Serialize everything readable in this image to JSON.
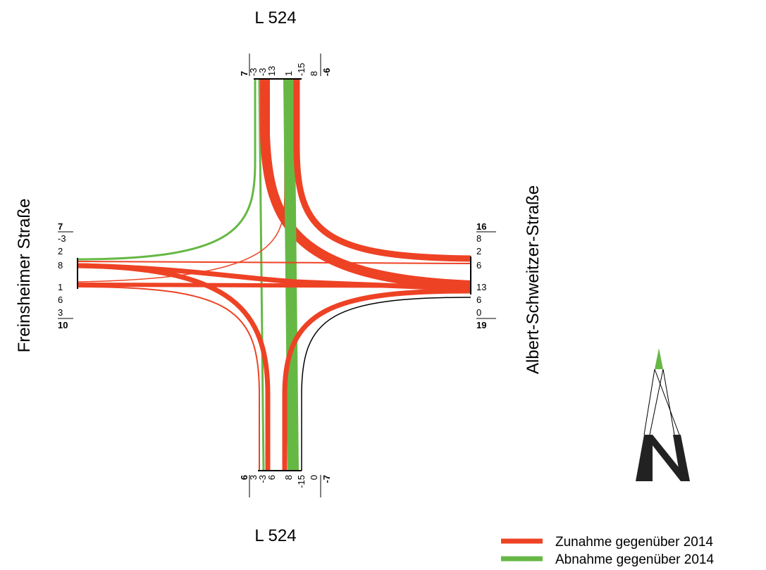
{
  "colors": {
    "increase": "#ee4225",
    "decrease": "#66b845",
    "neutral": "#000000"
  },
  "labels": {
    "north_road": "L 524",
    "south_road": "L 524",
    "west_road": "Freinsheimer Straße",
    "east_road": "Albert-Schweitzer-Straße"
  },
  "legend": {
    "increase": "Zunahme gegenüber 2014",
    "decrease": "Abnahme gegenüber 2014"
  },
  "counts": {
    "north": {
      "total_in": "7",
      "in": [
        "-3",
        "-3",
        "13"
      ],
      "out": [
        "1",
        "-15",
        "8"
      ],
      "total_out": "-6"
    },
    "south": {
      "total_out": "6",
      "out": [
        "3",
        "-3",
        "6"
      ],
      "in": [
        "8",
        "-15",
        "0"
      ],
      "total_in": "-7"
    },
    "west": {
      "total_out": "7",
      "out": [
        "-3",
        "2",
        "8"
      ],
      "in": [
        "1",
        "6",
        "3"
      ],
      "total_in": "10"
    },
    "east": {
      "total_out": "16",
      "out": [
        "8",
        "2",
        "6"
      ],
      "in": [
        "13",
        "6",
        "0"
      ],
      "total_in": "19"
    }
  },
  "north_arrow": {
    "icon": "north-arrow-icon"
  }
}
